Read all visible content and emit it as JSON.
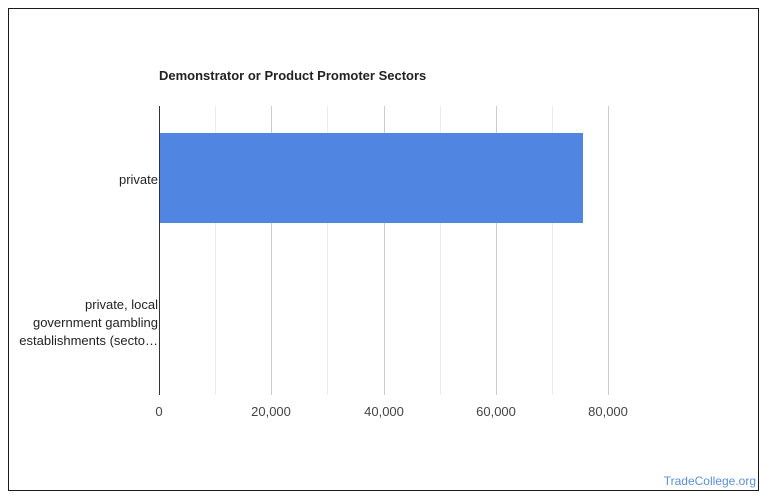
{
  "chart_data": {
    "type": "bar",
    "orientation": "horizontal",
    "title": "Demonstrator or Product Promoter Sectors",
    "categories": [
      "private",
      "private, local government gambling establishments (secto…"
    ],
    "category_label_lines": [
      [
        "private"
      ],
      [
        "private, local",
        "government gambling",
        "establishments (secto…"
      ]
    ],
    "values": [
      75600,
      150
    ],
    "xlabel": "",
    "ylabel": "",
    "xlim": [
      0,
      100000
    ],
    "x_ticks": [
      0,
      20000,
      40000,
      60000,
      80000
    ],
    "x_tick_labels": [
      "0",
      "20,000",
      "40,000",
      "60,000",
      "80,000"
    ],
    "minor_gridlines": [
      10000,
      30000,
      50000,
      70000
    ],
    "grid": true,
    "legend": "none",
    "bar_color": "#5086e2"
  },
  "watermark": "TradeCollege.org"
}
